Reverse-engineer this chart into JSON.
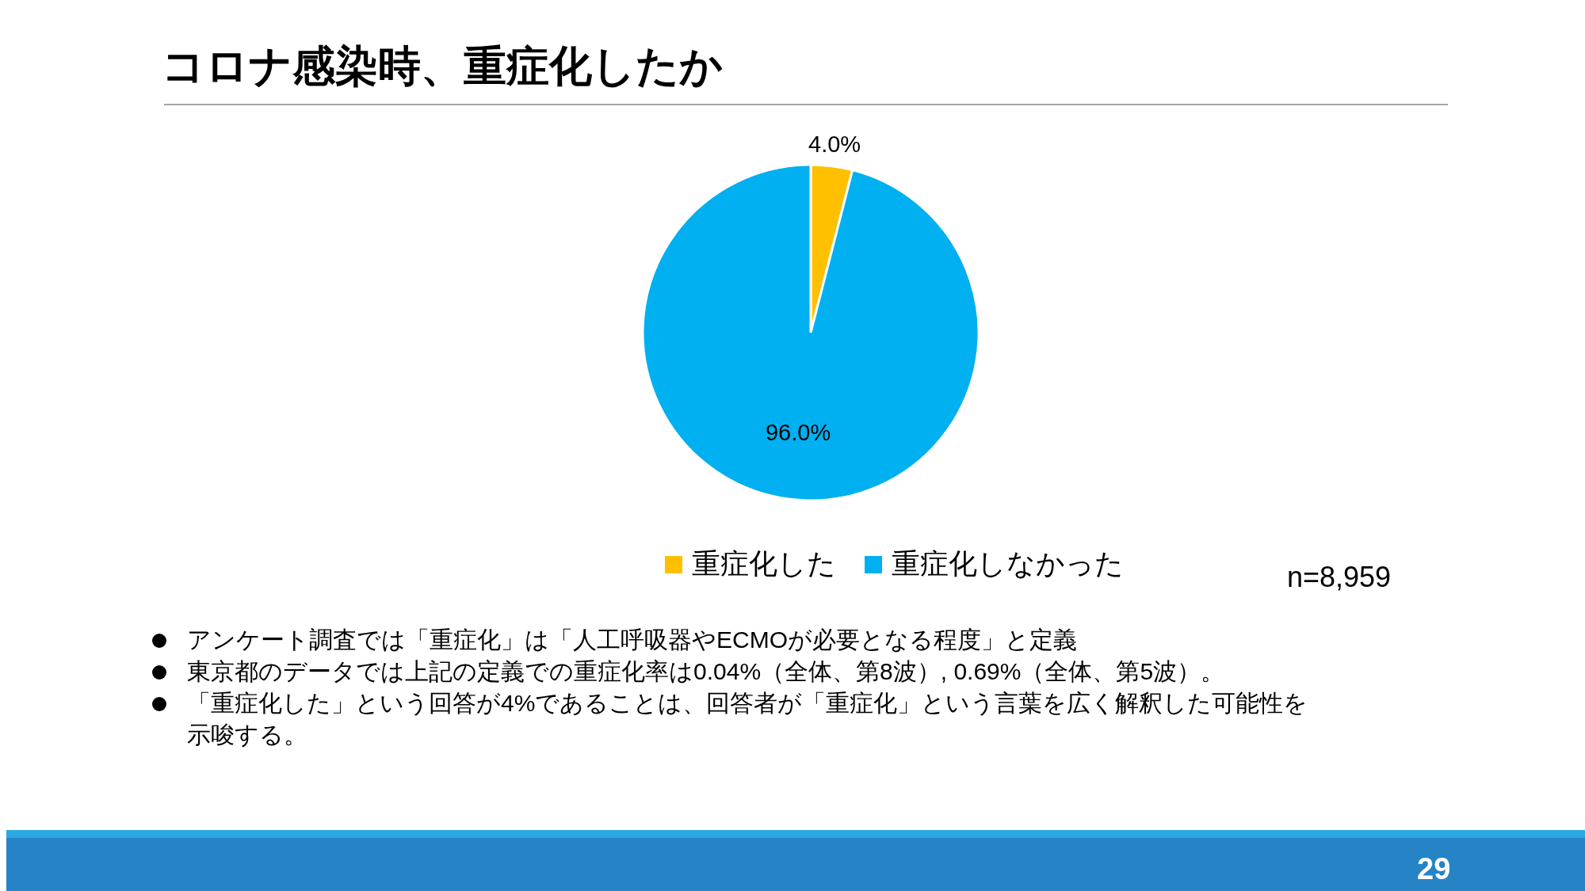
{
  "chart_data": {
    "type": "pie",
    "title": "コロナ感染時、重症化したか",
    "categories": [
      "重症化した",
      "重症化しなかった"
    ],
    "values": [
      4.0,
      96.0
    ],
    "colors": [
      "#ffc000",
      "#00b0f0"
    ],
    "value_labels": [
      "4.0%",
      "96.0%"
    ],
    "legend": "bottom",
    "annotations": [
      "n=8,959",
      "アンケート調査では「重症化」は「人工呼吸器やECMOが必要となる程度」と定義",
      "東京都のデータでは上記の定義での重症化率は0.04%（全体、第8波）, 0.69%（全体、第5波）。",
      "「重症化した」という回答が4%であることは、回答者が「重症化」という言葉を広く解釈した可能性を示唆する。",
      "29"
    ]
  }
}
